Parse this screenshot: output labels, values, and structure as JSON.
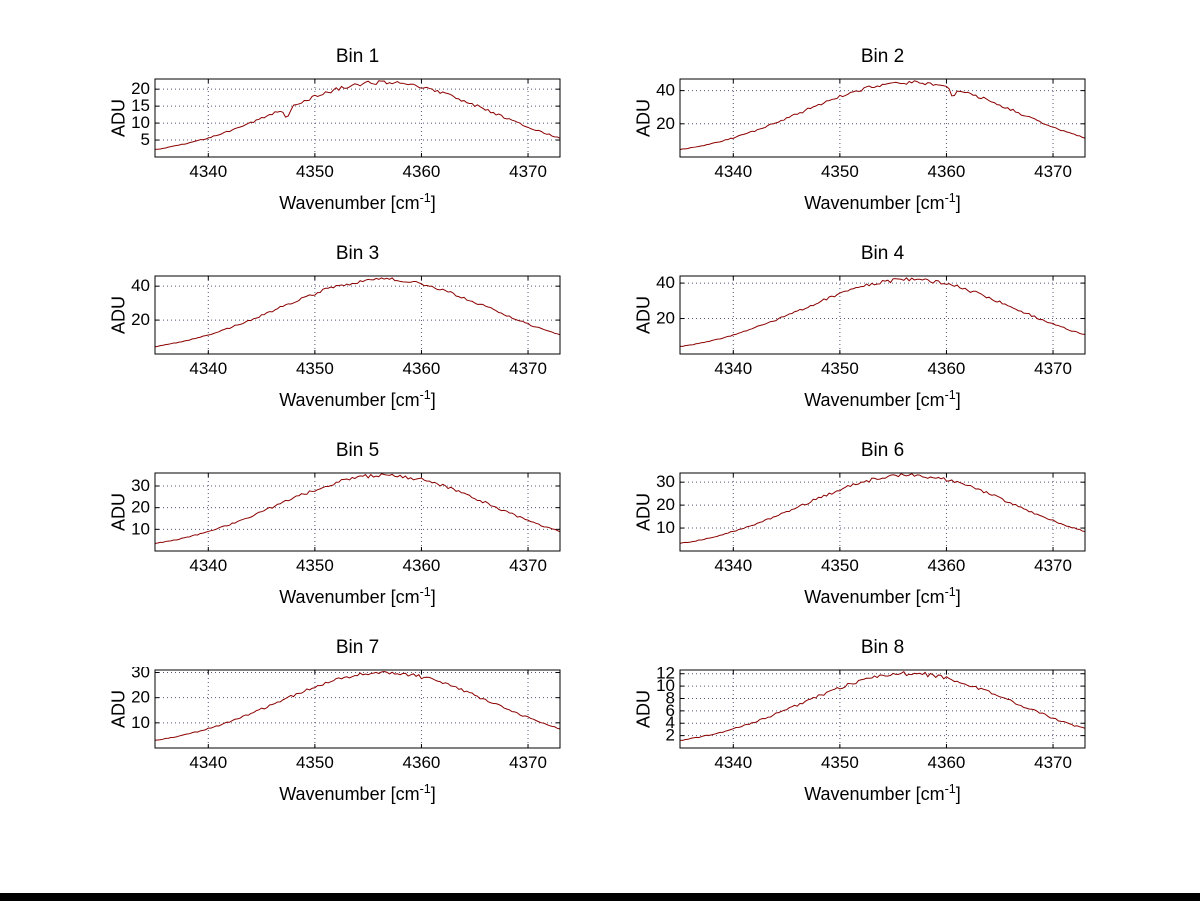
{
  "figure": {
    "background": "#ffffff",
    "line_color": "#8b0000",
    "grid_color": "#555577",
    "axis_color": "#000000"
  },
  "labels": {
    "ylabel": "ADU",
    "xlabel_pre": "Wavenumber [cm",
    "xlabel_sup": "-1",
    "xlabel_post": "]"
  },
  "x_values": [
    4335,
    4336,
    4337,
    4338,
    4339,
    4340,
    4341,
    4342,
    4343,
    4344,
    4345,
    4346,
    4347,
    4348,
    4349,
    4350,
    4351,
    4352,
    4353,
    4354,
    4355,
    4356,
    4357,
    4358,
    4359,
    4360,
    4361,
    4362,
    4363,
    4364,
    4365,
    4366,
    4367,
    4368,
    4369,
    4370,
    4371,
    4372,
    4373
  ],
  "chart_data": [
    {
      "type": "line",
      "title": "Bin 1",
      "xlabel": "Wavenumber [cm^-1]",
      "ylabel": "ADU",
      "xlim": [
        4335,
        4373
      ],
      "ylim": [
        0,
        23
      ],
      "xticks": [
        4340,
        4350,
        4360,
        4370
      ],
      "yticks": [
        5,
        10,
        15,
        20
      ],
      "values": [
        2.2,
        2.7,
        3.3,
        4.0,
        4.8,
        5.6,
        6.6,
        7.7,
        8.8,
        10.1,
        11.4,
        12.7,
        14.0,
        15.3,
        16.6,
        17.8,
        18.9,
        19.9,
        20.7,
        21.3,
        21.8,
        22.0,
        22.0,
        21.8,
        21.3,
        20.7,
        19.9,
        18.9,
        17.8,
        16.6,
        15.3,
        14.0,
        12.7,
        11.4,
        10.1,
        8.8,
        7.7,
        6.6,
        5.6
      ],
      "dip": {
        "x": 4347.4,
        "depth": 0.22,
        "width": 0.6
      }
    },
    {
      "type": "line",
      "title": "Bin 2",
      "xlabel": "Wavenumber [cm^-1]",
      "ylabel": "ADU",
      "xlim": [
        4335,
        4373
      ],
      "ylim": [
        0,
        47
      ],
      "xticks": [
        4340,
        4350,
        4360,
        4370
      ],
      "yticks": [
        20,
        40
      ],
      "values": [
        4.5,
        5.5,
        6.7,
        8.1,
        9.7,
        11.5,
        13.5,
        15.7,
        18.1,
        20.6,
        23.2,
        25.9,
        28.7,
        31.4,
        34.0,
        36.4,
        38.7,
        40.7,
        42.3,
        43.6,
        44.5,
        44.9,
        44.9,
        44.5,
        43.6,
        42.3,
        40.7,
        38.7,
        36.4,
        34.0,
        31.4,
        28.7,
        25.9,
        23.2,
        20.6,
        18.1,
        15.7,
        13.5,
        11.5
      ],
      "dip": {
        "x": 4360.6,
        "depth": 0.12,
        "width": 0.5
      }
    },
    {
      "type": "line",
      "title": "Bin 3",
      "xlabel": "Wavenumber [cm^-1]",
      "ylabel": "ADU",
      "xlim": [
        4335,
        4373
      ],
      "ylim": [
        0,
        46
      ],
      "xticks": [
        4340,
        4350,
        4360,
        4370
      ],
      "yticks": [
        20,
        40
      ],
      "values": [
        4.4,
        5.4,
        6.6,
        8.0,
        9.5,
        11.3,
        13.2,
        15.4,
        17.7,
        20.1,
        22.7,
        25.4,
        28.0,
        30.7,
        33.2,
        35.6,
        37.8,
        39.8,
        41.4,
        42.6,
        43.5,
        43.9,
        43.9,
        43.5,
        42.6,
        41.4,
        39.8,
        37.8,
        35.6,
        33.2,
        30.7,
        28.0,
        25.4,
        22.7,
        20.1,
        17.7,
        15.4,
        13.2,
        11.3
      ]
    },
    {
      "type": "line",
      "title": "Bin 4",
      "xlabel": "Wavenumber [cm^-1]",
      "ylabel": "ADU",
      "xlim": [
        4335,
        4373
      ],
      "ylim": [
        0,
        44
      ],
      "xticks": [
        4340,
        4350,
        4360,
        4370
      ],
      "yticks": [
        20,
        40
      ],
      "values": [
        4.2,
        5.1,
        6.3,
        7.6,
        9.1,
        10.8,
        12.6,
        14.7,
        16.9,
        19.2,
        21.7,
        24.2,
        26.7,
        29.3,
        31.7,
        34.0,
        36.1,
        38.0,
        39.5,
        40.7,
        41.5,
        41.9,
        41.9,
        41.5,
        40.7,
        39.5,
        38.0,
        36.1,
        34.0,
        31.7,
        29.3,
        26.7,
        24.2,
        21.7,
        19.2,
        16.9,
        14.7,
        12.6,
        10.8
      ]
    },
    {
      "type": "line",
      "title": "Bin 5",
      "xlabel": "Wavenumber [cm^-1]",
      "ylabel": "ADU",
      "xlim": [
        4335,
        4373
      ],
      "ylim": [
        0,
        36
      ],
      "xticks": [
        4340,
        4350,
        4360,
        4370
      ],
      "yticks": [
        10,
        20,
        30
      ],
      "values": [
        3.5,
        4.3,
        5.2,
        6.3,
        7.6,
        9.0,
        10.5,
        12.2,
        14.1,
        16.0,
        18.1,
        20.2,
        22.3,
        24.4,
        26.4,
        28.3,
        30.1,
        31.6,
        32.9,
        33.9,
        34.6,
        35.0,
        35.0,
        34.6,
        33.9,
        32.9,
        31.6,
        30.1,
        28.3,
        26.4,
        24.4,
        22.3,
        20.2,
        18.1,
        16.0,
        14.1,
        12.2,
        10.5,
        9.0
      ]
    },
    {
      "type": "line",
      "title": "Bin 6",
      "xlabel": "Wavenumber [cm^-1]",
      "ylabel": "ADU",
      "xlim": [
        4335,
        4373
      ],
      "ylim": [
        0,
        34
      ],
      "xticks": [
        4340,
        4350,
        4360,
        4370
      ],
      "yticks": [
        10,
        20,
        30
      ],
      "values": [
        3.3,
        4.0,
        4.9,
        6.0,
        7.1,
        8.5,
        9.9,
        11.5,
        13.3,
        15.1,
        17.0,
        19.0,
        21.0,
        23.0,
        24.9,
        26.7,
        28.4,
        29.8,
        31.0,
        32.0,
        32.6,
        33.0,
        33.0,
        32.6,
        32.0,
        31.0,
        29.8,
        28.4,
        26.7,
        24.9,
        23.0,
        21.0,
        19.0,
        17.0,
        15.1,
        13.3,
        11.5,
        9.9,
        8.5
      ]
    },
    {
      "type": "line",
      "title": "Bin 7",
      "xlabel": "Wavenumber [cm^-1]",
      "ylabel": "ADU",
      "xlim": [
        4335,
        4373
      ],
      "ylim": [
        0,
        31
      ],
      "xticks": [
        4340,
        4350,
        4360,
        4370
      ],
      "yticks": [
        10,
        20,
        30
      ],
      "values": [
        3.0,
        3.7,
        4.5,
        5.4,
        6.5,
        7.7,
        9.0,
        10.5,
        12.1,
        13.7,
        15.5,
        17.3,
        19.1,
        20.9,
        22.7,
        24.3,
        25.8,
        27.1,
        28.2,
        29.1,
        29.7,
        30.0,
        30.0,
        29.7,
        29.1,
        28.2,
        27.1,
        25.8,
        24.3,
        22.7,
        20.9,
        19.1,
        17.3,
        15.5,
        13.7,
        12.1,
        10.5,
        9.0,
        7.7
      ]
    },
    {
      "type": "line",
      "title": "Bin 8",
      "xlabel": "Wavenumber [cm^-1]",
      "ylabel": "ADU",
      "xlim": [
        4335,
        4373
      ],
      "ylim": [
        0,
        12.6
      ],
      "xticks": [
        4340,
        4350,
        4360,
        4370
      ],
      "yticks": [
        2,
        4,
        6,
        8,
        10,
        12
      ],
      "values": [
        1.2,
        1.5,
        1.8,
        2.2,
        2.6,
        3.1,
        3.6,
        4.2,
        4.8,
        5.5,
        6.2,
        6.9,
        7.6,
        8.4,
        9.1,
        9.7,
        10.3,
        10.8,
        11.3,
        11.6,
        11.9,
        12.0,
        12.0,
        11.9,
        11.6,
        11.3,
        10.8,
        10.3,
        9.7,
        9.1,
        8.4,
        7.6,
        6.9,
        6.2,
        5.5,
        4.8,
        4.2,
        3.6,
        3.1
      ]
    }
  ]
}
